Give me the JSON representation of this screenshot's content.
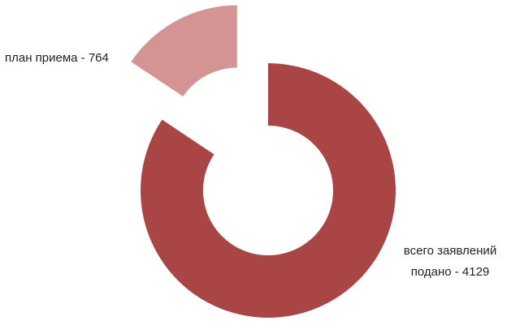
{
  "chart_data": {
    "type": "doughnut",
    "categories": [
      "всего заявлений подано - 4129",
      "план приема - 764"
    ],
    "values": [
      4129,
      764
    ],
    "colors": [
      "#a94545",
      "#d49494"
    ]
  }
}
